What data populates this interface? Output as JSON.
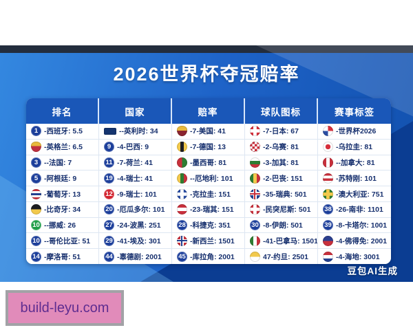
{
  "page": {
    "watermark": "豆包AI生成",
    "site_badge": "build-leyu.com"
  },
  "colors": {
    "badge_navy": "#1c3e9a",
    "badge_red": "#d2232e",
    "badge_green": "#1f9e48",
    "header_blue": "#1a57b8",
    "text_navy": "#17306e",
    "background_blue": "#1e63c8",
    "dark_strip": "#232d3d",
    "badge_pink": "#e18bba",
    "badge_purple": "#5e2c90"
  },
  "chart_data": {
    "type": "table",
    "title": "2026世界杯夺冠赔率",
    "columns": [
      "排名",
      "国家",
      "赔率",
      "球队图标",
      "赛事标签"
    ],
    "rows": [
      [
        {
          "icon": {
            "type": "num",
            "value": "1",
            "color": "navy",
            "name": "rank-1-badge"
          },
          "label": "-西班牙: 5.5"
        },
        {
          "icon": {
            "type": "bar",
            "colors": [
              "#14346f"
            ],
            "name": "navy-flag-bar-icon"
          },
          "label": "--英利时: 34"
        },
        {
          "icon": {
            "type": "crest",
            "colors": [
              "#e8b93c",
              "#8a2430"
            ],
            "name": "gold-crest-icon"
          },
          "label": "-7-美国: 41"
        },
        {
          "icon": {
            "type": "cross",
            "colors": [
              "#ffffff",
              "#d6303c"
            ],
            "name": "red-white-cross-flag-icon"
          },
          "label": "-7-日本: 67"
        },
        {
          "icon": {
            "type": "quad",
            "colors": [
              "#d6303c",
              "#ffffff",
              "#2b4ea3",
              "#ffffff"
            ],
            "name": "world-cup-2026-logo-icon"
          },
          "label": "-世界杯2026"
        }
      ],
      [
        {
          "icon": {
            "type": "crest",
            "colors": [
              "#e8b93c",
              "#c03040"
            ],
            "name": "england-crest-icon"
          },
          "label": "-英格兰: 6.5"
        },
        {
          "icon": {
            "type": "num",
            "value": "9",
            "color": "navy",
            "name": "rank-9-badge"
          },
          "label": "-4-巴西: 9"
        },
        {
          "icon": {
            "type": "flag",
            "dir": "v",
            "colors": [
              "#f2c94c",
              "#1d1d22",
              "#f2c94c"
            ],
            "name": "yellow-black-flag-icon"
          },
          "label": "-7-德国: 13"
        },
        {
          "icon": {
            "type": "check",
            "colors": [
              "#c8303c",
              "#ffffff"
            ],
            "name": "red-white-checkered-flag-icon"
          },
          "label": "-2-乌赛: 81"
        },
        {
          "icon": {
            "type": "emblem",
            "colors": [
              "#d6303c",
              "#ffffff"
            ],
            "name": "trophy-emblem-icon"
          },
          "label": "-乌拉圭: 81"
        }
      ],
      [
        {
          "icon": {
            "type": "num",
            "value": "3",
            "color": "navy",
            "name": "rank-3-badge"
          },
          "label": "--法国: 7"
        },
        {
          "icon": {
            "type": "num",
            "value": "11",
            "color": "navy",
            "name": "rank-11-badge"
          },
          "label": "-7-荷兰: 41"
        },
        {
          "icon": {
            "type": "flag",
            "dir": "v",
            "colors": [
              "#c8303c",
              "#2e7d32"
            ],
            "name": "red-green-flag-icon"
          },
          "label": "-墨西哥: 81"
        },
        {
          "icon": {
            "type": "flag",
            "dir": "h",
            "colors": [
              "#ffffff",
              "#2e7d32",
              "#c8303c"
            ],
            "name": "white-green-red-flag-icon"
          },
          "label": "-3-加其: 81"
        },
        {
          "icon": {
            "type": "flag",
            "dir": "v",
            "colors": [
              "#c8303c",
              "#ffffff",
              "#c8303c"
            ],
            "name": "red-white-red-flag-icon"
          },
          "label": "--加拿大: 81"
        }
      ],
      [
        {
          "icon": {
            "type": "num",
            "value": "5",
            "color": "navy",
            "name": "rank-5-badge"
          },
          "label": "-阿根廷: 9"
        },
        {
          "icon": {
            "type": "num",
            "value": "19",
            "color": "navy",
            "name": "rank-19-badge"
          },
          "label": "-4-瑞士: 41"
        },
        {
          "icon": {
            "type": "flag",
            "dir": "v",
            "colors": [
              "#f2c94c",
              "#2e7d32",
              "#c8303c"
            ],
            "name": "yellow-green-red-flag-icon"
          },
          "label": "--厄地利: 101"
        },
        {
          "icon": {
            "type": "flag",
            "dir": "v",
            "colors": [
              "#2e7d32",
              "#f2c94c",
              "#c8303c"
            ],
            "name": "green-yellow-red-flag-icon"
          },
          "label": "-2-巴丧: 151"
        },
        {
          "icon": {
            "type": "flag",
            "dir": "h",
            "colors": [
              "#c8303c",
              "#ffffff",
              "#c8303c",
              "#ffffff"
            ],
            "name": "red-white-striped-flag-icon"
          },
          "label": "-苏特刚: 101"
        }
      ],
      [
        {
          "icon": {
            "type": "flag",
            "dir": "h",
            "colors": [
              "#c8303c",
              "#ffffff",
              "#23408f",
              "#ffffff",
              "#c8303c"
            ],
            "name": "red-white-blue-striped-flag-icon"
          },
          "label": "-葡萄牙: 13"
        },
        {
          "icon": {
            "type": "num",
            "value": "12",
            "color": "red",
            "name": "rank-12-red-badge"
          },
          "label": "-9-瑞士: 101"
        },
        {
          "icon": {
            "type": "cross",
            "colors": [
              "#ffffff",
              "#2b4ea3"
            ],
            "name": "blue-white-cross-flag-icon"
          },
          "label": "-克拉圭: 151"
        },
        {
          "icon": {
            "type": "ujack",
            "colors": [
              "#c8303c",
              "#23408f"
            ],
            "name": "union-jack-flag-icon"
          },
          "label": "-35-瑞典: 501"
        },
        {
          "icon": {
            "type": "cross",
            "colors": [
              "#f2c94c",
              "#2e7d32"
            ],
            "name": "green-yellow-cross-flag-icon"
          },
          "label": "-澳大利亚: 751"
        }
      ],
      [
        {
          "icon": {
            "type": "flag",
            "dir": "h",
            "colors": [
              "#1b1c20",
              "#f2c94c"
            ],
            "name": "black-yellow-flag-icon"
          },
          "label": "-比奇牙: 34"
        },
        {
          "icon": {
            "type": "num",
            "value": "20",
            "color": "navy",
            "name": "rank-20-badge"
          },
          "label": "-厄瓜多尔: 101"
        },
        {
          "icon": {
            "type": "flag",
            "dir": "h",
            "colors": [
              "#c8303c",
              "#ffffff",
              "#c8303c"
            ],
            "name": "red-white-red-striped-flag-icon"
          },
          "label": "-23-瑞其: 151"
        },
        {
          "icon": {
            "type": "cross",
            "colors": [
              "#ffffff",
              "#c8303c"
            ],
            "name": "white-cross-red-flag-icon"
          },
          "label": "-民突尼斯: 501"
        },
        {
          "icon": {
            "type": "num",
            "value": "38",
            "color": "navy",
            "name": "rank-38-badge"
          },
          "label": "-26-南非: 1101"
        }
      ],
      [
        {
          "icon": {
            "type": "num",
            "value": "10",
            "color": "green",
            "name": "rank-10-green-badge"
          },
          "label": "--挪威: 26"
        },
        {
          "icon": {
            "type": "num",
            "value": "27",
            "color": "navy",
            "name": "rank-27-badge"
          },
          "label": "-24-波黑: 251"
        },
        {
          "icon": {
            "type": "num",
            "value": "28",
            "color": "navy",
            "name": "rank-28-badge"
          },
          "label": "-科捷克: 351"
        },
        {
          "icon": {
            "type": "num",
            "value": "30",
            "color": "navy",
            "name": "rank-30-badge"
          },
          "label": "-8-伊朗: 501"
        },
        {
          "icon": {
            "type": "num",
            "value": "39",
            "color": "navy",
            "name": "rank-39-badge"
          },
          "label": "-8-卡塔尔: 1001"
        }
      ],
      [
        {
          "icon": {
            "type": "num",
            "value": "10",
            "color": "navy",
            "name": "rank-10-badge"
          },
          "label": "--哥伦比亚: 51"
        },
        {
          "icon": {
            "type": "num",
            "value": "29",
            "color": "navy",
            "name": "rank-29-badge"
          },
          "label": "-41-埃及: 301"
        },
        {
          "icon": {
            "type": "ujack",
            "colors": [
              "#23408f",
              "#c8303c"
            ],
            "name": "red-white-blue-cross-flag-icon"
          },
          "label": "-新西兰: 1501"
        },
        {
          "icon": {
            "type": "flag",
            "dir": "v",
            "colors": [
              "#2e7d32",
              "#ffffff",
              "#c8303c"
            ],
            "name": "green-white-red-flag-icon"
          },
          "label": "-41-巴拿马: 1501"
        },
        {
          "icon": {
            "type": "flag",
            "dir": "h",
            "colors": [
              "#2b3f8f",
              "#c8303c"
            ],
            "name": "blue-red-flag-icon"
          },
          "label": "-4-佛得免: 2001"
        }
      ],
      [
        {
          "icon": {
            "type": "num",
            "value": "14",
            "color": "navy",
            "name": "rank-14-badge"
          },
          "label": "-摩洛哥: 51"
        },
        {
          "icon": {
            "type": "num",
            "value": "44",
            "color": "navy",
            "name": "rank-44-badge"
          },
          "label": "-辜德剧: 2001"
        },
        {
          "icon": {
            "type": "num",
            "value": "45",
            "color": "navy",
            "name": "rank-45-badge"
          },
          "label": "-库拉角: 2001"
        },
        {
          "icon": {
            "type": "flag",
            "dir": "h",
            "colors": [
              "#f2c94c",
              "#ffffff"
            ],
            "name": "yellow-white-flag-icon"
          },
          "label": "47-约旦: 2501"
        },
        {
          "icon": {
            "type": "flag",
            "dir": "h",
            "colors": [
              "#c8303c",
              "#ffffff",
              "#23408f"
            ],
            "name": "red-white-blue-flag-icon"
          },
          "label": "-4-海地: 3001"
        }
      ]
    ]
  }
}
